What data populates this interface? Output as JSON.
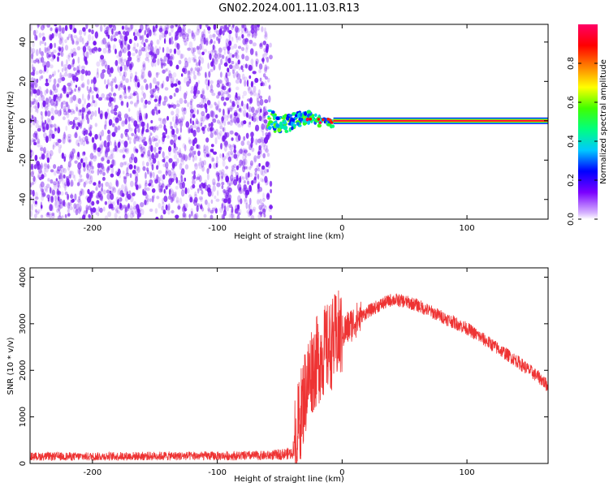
{
  "title": "GN02.2024.001.11.03.R13",
  "colors": {
    "snr_line": "#ee3333",
    "noise_purple": "#7a1cf0",
    "colorbar_stops": [
      "#d9b8ff",
      "#7a00ff",
      "#0000ff",
      "#00c8ff",
      "#00ff80",
      "#40ff00",
      "#ffff00",
      "#ff8000",
      "#ff0000",
      "#ff0066"
    ]
  },
  "chart_data": [
    {
      "type": "heatmap",
      "xlabel": "Height of straight line (km)",
      "ylabel": "Frequency (Hz)",
      "xlim": [
        -250,
        165
      ],
      "ylim": [
        -50,
        49
      ],
      "xticks": [
        -200,
        -100,
        0,
        100
      ],
      "yticks": [
        -40,
        -20,
        0,
        20,
        40
      ],
      "colorbar": {
        "label": "Normalized spectral amplitude",
        "range": [
          0,
          1
        ],
        "ticks": [
          "0.0",
          "0.2",
          "0.4",
          "0.6",
          "0.8"
        ]
      },
      "regions": [
        {
          "kind": "noise",
          "x_range": [
            -250,
            -57
          ],
          "freq_range": [
            -50,
            49
          ],
          "amplitude": [
            0.0,
            0.1
          ]
        },
        {
          "kind": "scattered-signal",
          "x_range": [
            -60,
            -7
          ],
          "freq_range": [
            -5,
            6
          ],
          "amplitude": [
            0.2,
            0.6
          ]
        },
        {
          "kind": "narrow-peak",
          "x_range": [
            -7,
            165
          ],
          "frequency": 0,
          "amplitude": 1.0
        }
      ]
    },
    {
      "type": "line",
      "xlabel": "Height of straight line (km)",
      "ylabel": "SNR (10 * v/v)",
      "xlim": [
        -250,
        165
      ],
      "ylim": [
        0,
        4200
      ],
      "xticks": [
        -200,
        -100,
        0,
        100
      ],
      "yticks": [
        0,
        1000,
        2000,
        3000,
        4000
      ],
      "series": [
        {
          "x": [
            -250,
            -200,
            -150,
            -100,
            -60,
            -40,
            -35,
            -30,
            -25,
            -20,
            -15,
            -10,
            -5,
            0,
            10,
            20,
            30,
            40,
            50,
            60,
            80,
            100,
            120,
            140,
            160,
            165
          ],
          "y": [
            150,
            150,
            160,
            160,
            170,
            220,
            800,
            1500,
            2000,
            2200,
            2400,
            2500,
            2700,
            2800,
            3050,
            3250,
            3400,
            3520,
            3480,
            3400,
            3150,
            2900,
            2550,
            2200,
            1800,
            1650
          ]
        }
      ]
    }
  ]
}
